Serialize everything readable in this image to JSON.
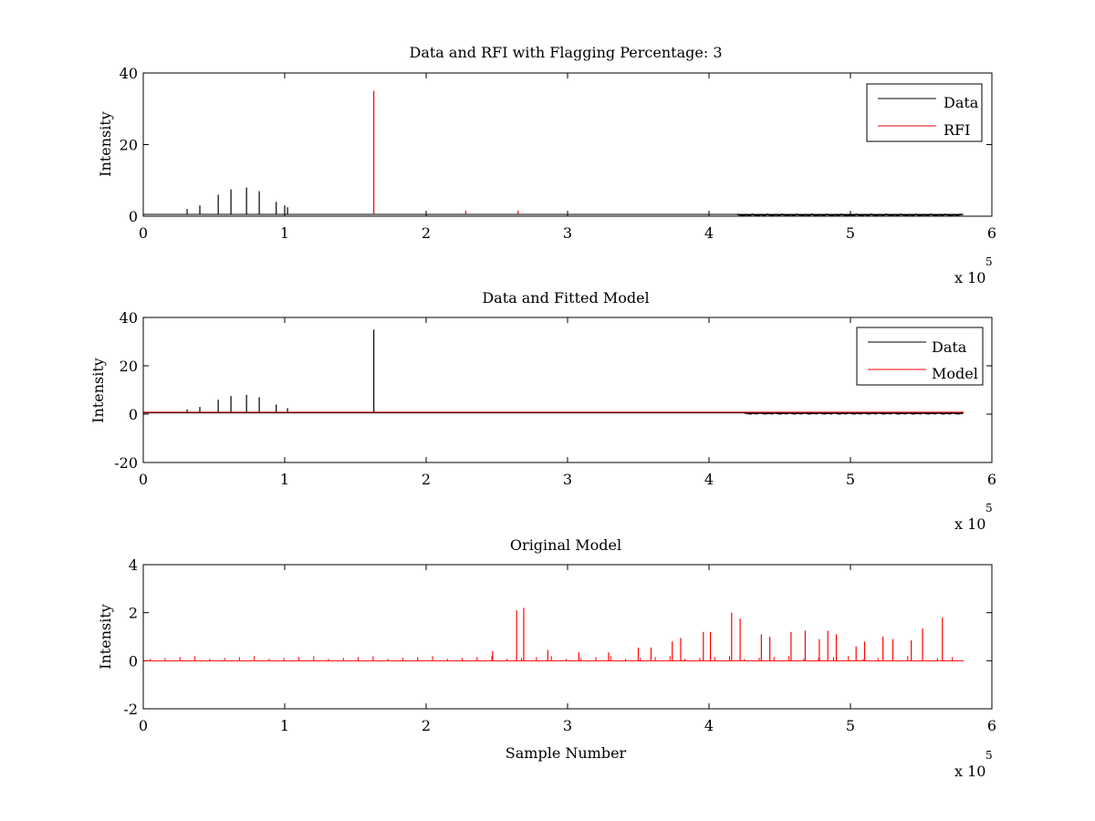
{
  "figure": {
    "background": "#ffffff",
    "data_color": "#000000",
    "rfi_color": "#ff0000",
    "model_color": "#ff0000"
  },
  "chart_data": [
    {
      "type": "line",
      "title": "Data and RFI with Flagging Percentage: 3",
      "xlabel": "",
      "ylabel": "Intensity",
      "xlim": [
        0,
        600000
      ],
      "ylim": [
        0,
        40
      ],
      "xticks": [
        0,
        1,
        2,
        3,
        4,
        5,
        6
      ],
      "yticks": [
        0,
        20,
        40
      ],
      "x_multiplier": "x 10",
      "x_multiplier_exponent": "5",
      "baseline": 0.5,
      "grid": false,
      "legend": "top-right",
      "series": [
        {
          "name": "Data",
          "color": "#000000",
          "spikes": [
            {
              "x": 31000,
              "y": 2
            },
            {
              "x": 40000,
              "y": 3
            },
            {
              "x": 53000,
              "y": 6
            },
            {
              "x": 62000,
              "y": 7.5
            },
            {
              "x": 73000,
              "y": 8
            },
            {
              "x": 82000,
              "y": 7
            },
            {
              "x": 94000,
              "y": 4
            },
            {
              "x": 100000,
              "y": 3
            },
            {
              "x": 102000,
              "y": 2.5
            }
          ]
        },
        {
          "name": "RFI",
          "color": "#ff0000",
          "spikes": [
            {
              "x": 163000,
              "y": 35
            },
            {
              "x": 228000,
              "y": 1.5
            },
            {
              "x": 265000,
              "y": 1.5
            }
          ]
        }
      ]
    },
    {
      "type": "line",
      "title": "Data and Fitted Model",
      "xlabel": "",
      "ylabel": "Intensity",
      "xlim": [
        0,
        600000
      ],
      "ylim": [
        -20,
        40
      ],
      "xticks": [
        0,
        1,
        2,
        3,
        4,
        5,
        6
      ],
      "yticks": [
        -20,
        0,
        20,
        40
      ],
      "x_multiplier": "x 10",
      "x_multiplier_exponent": "5",
      "baseline": 0.5,
      "grid": false,
      "legend": "top-right",
      "series": [
        {
          "name": "Data",
          "color": "#000000",
          "spikes": [
            {
              "x": 31000,
              "y": 2
            },
            {
              "x": 40000,
              "y": 3
            },
            {
              "x": 53000,
              "y": 6
            },
            {
              "x": 62000,
              "y": 7.5
            },
            {
              "x": 73000,
              "y": 8
            },
            {
              "x": 82000,
              "y": 7
            },
            {
              "x": 94000,
              "y": 4
            },
            {
              "x": 102000,
              "y": 2.5
            },
            {
              "x": 163000,
              "y": 35
            }
          ]
        },
        {
          "name": "Model",
          "color": "#ff0000",
          "spikes": []
        }
      ]
    },
    {
      "type": "line",
      "title": "Original Model",
      "xlabel": "Sample Number",
      "ylabel": "Intensity",
      "xlim": [
        0,
        600000
      ],
      "ylim": [
        -2,
        4
      ],
      "xticks": [
        0,
        1,
        2,
        3,
        4,
        5,
        6
      ],
      "yticks": [
        -2,
        0,
        2,
        4
      ],
      "x_multiplier": "x 10",
      "x_multiplier_exponent": "5",
      "baseline": 0,
      "grid": false,
      "legend": "none",
      "series": [
        {
          "name": "",
          "color": "#ff0000",
          "spikes": [
            {
              "x": 247000,
              "y": 0.4
            },
            {
              "x": 264000,
              "y": 2.1
            },
            {
              "x": 269000,
              "y": 2.2
            },
            {
              "x": 286000,
              "y": 0.45
            },
            {
              "x": 308000,
              "y": 0.35
            },
            {
              "x": 329000,
              "y": 0.35
            },
            {
              "x": 350000,
              "y": 0.55
            },
            {
              "x": 359000,
              "y": 0.55
            },
            {
              "x": 374000,
              "y": 0.8
            },
            {
              "x": 380000,
              "y": 0.95
            },
            {
              "x": 396000,
              "y": 1.2
            },
            {
              "x": 401000,
              "y": 1.2
            },
            {
              "x": 416000,
              "y": 2.0
            },
            {
              "x": 422000,
              "y": 1.75
            },
            {
              "x": 437000,
              "y": 1.1
            },
            {
              "x": 443000,
              "y": 1.0
            },
            {
              "x": 458000,
              "y": 1.2
            },
            {
              "x": 468000,
              "y": 1.25
            },
            {
              "x": 478000,
              "y": 0.9
            },
            {
              "x": 484000,
              "y": 1.25
            },
            {
              "x": 490000,
              "y": 1.1
            },
            {
              "x": 504000,
              "y": 0.6
            },
            {
              "x": 510000,
              "y": 0.8
            },
            {
              "x": 523000,
              "y": 1.0
            },
            {
              "x": 530000,
              "y": 0.9
            },
            {
              "x": 543000,
              "y": 0.85
            },
            {
              "x": 551000,
              "y": 1.35
            },
            {
              "x": 565000,
              "y": 1.8
            }
          ]
        }
      ]
    }
  ]
}
